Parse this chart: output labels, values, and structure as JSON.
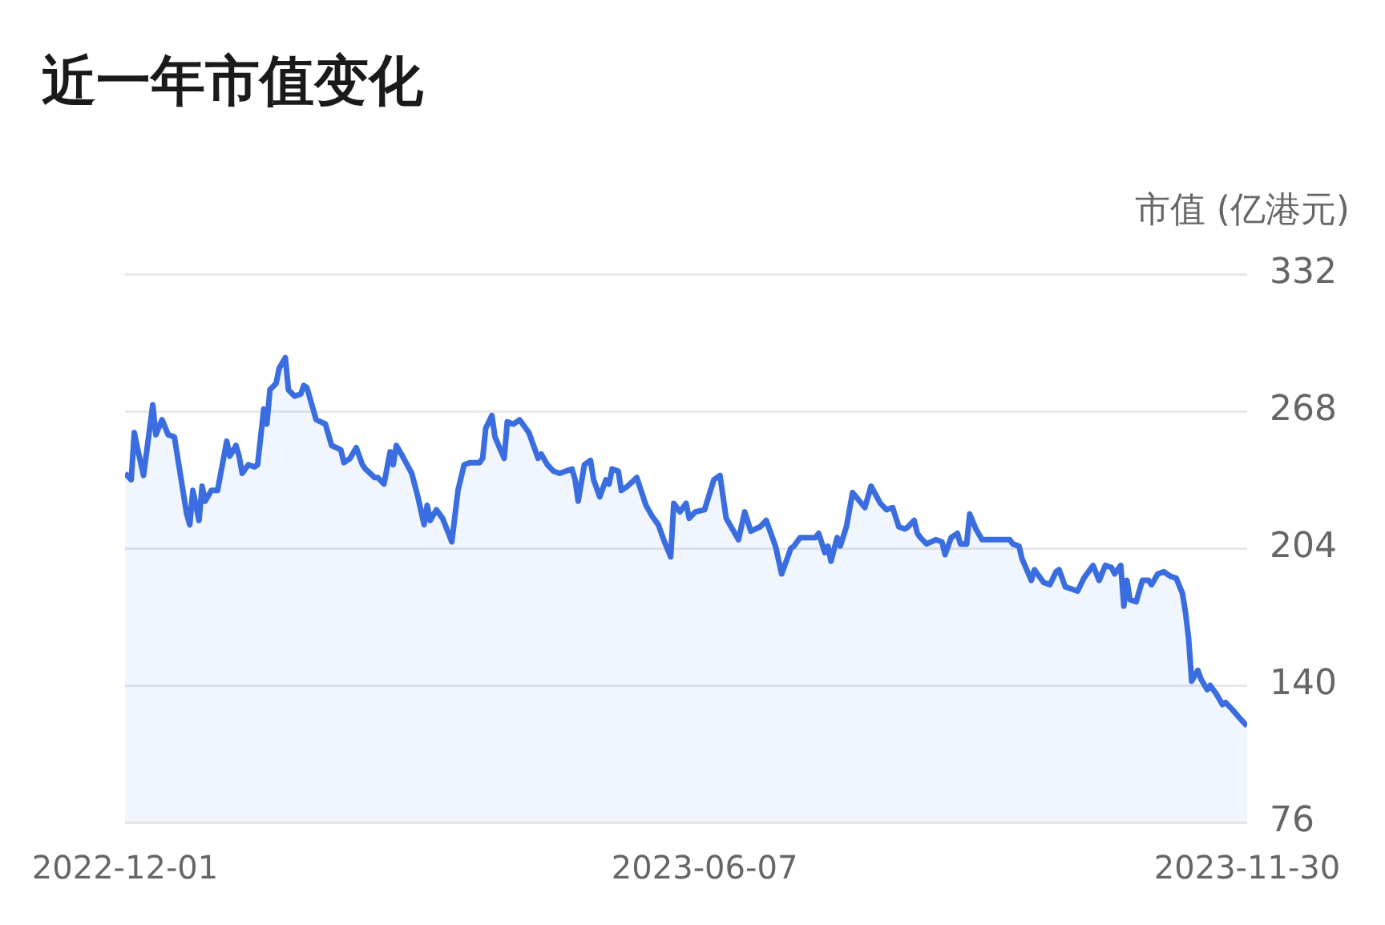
{
  "chart_data": {
    "type": "area",
    "title": "近一年市值变化",
    "ylabel": "市值 (亿港元)",
    "xlim": [
      "2022-12-01",
      "2023-11-30"
    ],
    "xticks": [
      "2022-12-01",
      "2023-06-07",
      "2023-11-30"
    ],
    "ylim": [
      76,
      332
    ],
    "yticks": [
      76,
      140,
      204,
      268,
      332
    ],
    "grid": "y",
    "legend": false,
    "marker": "none",
    "line_style": "solid",
    "x": [
      "2022-12-01",
      "2022-12-03",
      "2022-12-04",
      "2022-12-05",
      "2022-12-07",
      "2022-12-10",
      "2022-12-11",
      "2022-12-13",
      "2022-12-15",
      "2022-12-17",
      "2022-12-18",
      "2022-12-21",
      "2022-12-22",
      "2022-12-23",
      "2022-12-25",
      "2022-12-26",
      "2022-12-27",
      "2022-12-29",
      "2022-12-31",
      "2023-01-03",
      "2023-01-04",
      "2023-01-06",
      "2023-01-07",
      "2023-01-08",
      "2023-01-10",
      "2023-01-12",
      "2023-01-13",
      "2023-01-15",
      "2023-01-16",
      "2023-01-17",
      "2023-01-19",
      "2023-01-20",
      "2023-01-22",
      "2023-01-23",
      "2023-01-25",
      "2023-01-27",
      "2023-01-28",
      "2023-01-29",
      "2023-02-01",
      "2023-02-04",
      "2023-02-06",
      "2023-02-09",
      "2023-02-10",
      "2023-02-12",
      "2023-02-14",
      "2023-02-16",
      "2023-02-17",
      "2023-02-20",
      "2023-02-21",
      "2023-02-23",
      "2023-02-25",
      "2023-02-26",
      "2023-02-27",
      "2023-03-01",
      "2023-03-04",
      "2023-03-06",
      "2023-03-08",
      "2023-03-09",
      "2023-03-10",
      "2023-03-12",
      "2023-03-14",
      "2023-03-17",
      "2023-03-19",
      "2023-03-21",
      "2023-03-23",
      "2023-03-26",
      "2023-03-27",
      "2023-03-28",
      "2023-03-30",
      "2023-03-31",
      "2023-04-03",
      "2023-04-04",
      "2023-04-06",
      "2023-04-08",
      "2023-04-11",
      "2023-04-14",
      "2023-04-15",
      "2023-04-17",
      "2023-04-19",
      "2023-04-21",
      "2023-04-23",
      "2023-04-25",
      "2023-04-26",
      "2023-04-27",
      "2023-04-29",
      "2023-05-01",
      "2023-05-02",
      "2023-05-04",
      "2023-05-06",
      "2023-05-07",
      "2023-05-08",
      "2023-05-10",
      "2023-05-11",
      "2023-05-13",
      "2023-05-16",
      "2023-05-19",
      "2023-05-21",
      "2023-05-23",
      "2023-05-25",
      "2023-05-27",
      "2023-05-28",
      "2023-05-30",
      "2023-06-01",
      "2023-06-02",
      "2023-06-04",
      "2023-06-07",
      "2023-06-10",
      "2023-06-12",
      "2023-06-14",
      "2023-06-18",
      "2023-06-20",
      "2023-06-22",
      "2023-06-25",
      "2023-06-27",
      "2023-06-30",
      "2023-07-02",
      "2023-07-05",
      "2023-07-06",
      "2023-07-08",
      "2023-07-13",
      "2023-07-14",
      "2023-07-16",
      "2023-07-17",
      "2023-07-18",
      "2023-07-20",
      "2023-07-21",
      "2023-07-23",
      "2023-07-25",
      "2023-07-29",
      "2023-07-31",
      "2023-08-03",
      "2023-08-05",
      "2023-08-07",
      "2023-08-09",
      "2023-08-11",
      "2023-08-12",
      "2023-08-14",
      "2023-08-15",
      "2023-08-16",
      "2023-08-18",
      "2023-08-21",
      "2023-08-23",
      "2023-08-24",
      "2023-08-26",
      "2023-08-28",
      "2023-08-29",
      "2023-08-31",
      "2023-09-01",
      "2023-09-03",
      "2023-09-05",
      "2023-09-09",
      "2023-09-14",
      "2023-09-15",
      "2023-09-17",
      "2023-09-18",
      "2023-09-21",
      "2023-09-22",
      "2023-09-25",
      "2023-09-27",
      "2023-09-29",
      "2023-09-30",
      "2023-10-02",
      "2023-10-04",
      "2023-10-06",
      "2023-10-08",
      "2023-10-11",
      "2023-10-13",
      "2023-10-15",
      "2023-10-17",
      "2023-10-18",
      "2023-10-20",
      "2023-10-21",
      "2023-10-22",
      "2023-10-23",
      "2023-10-25",
      "2023-10-27",
      "2023-10-29",
      "2023-10-30",
      "2023-11-01",
      "2023-11-03",
      "2023-11-05",
      "2023-11-07",
      "2023-11-09",
      "2023-11-10",
      "2023-11-11",
      "2023-11-12",
      "2023-11-14",
      "2023-11-15",
      "2023-11-17",
      "2023-11-18",
      "2023-11-20",
      "2023-11-22",
      "2023-11-23",
      "2023-11-25",
      "2023-11-28",
      "2023-11-30"
    ],
    "series": [
      {
        "color": "#3a6ee0",
        "values": [
          239,
          236,
          258,
          251,
          238,
          271,
          257,
          264,
          257,
          256,
          247,
          220,
          215,
          231,
          217,
          233,
          226,
          231,
          231,
          254,
          247,
          252,
          247,
          239,
          243,
          242,
          243,
          269,
          262,
          278,
          281,
          288,
          293,
          278,
          275,
          276,
          280,
          279,
          264,
          262,
          252,
          250,
          244,
          246,
          251,
          243,
          241,
          237,
          237,
          234,
          249,
          243,
          252,
          247,
          239,
          228,
          215,
          224,
          217,
          222,
          218,
          207,
          231,
          243,
          244,
          244,
          246,
          260,
          266,
          256,
          246,
          263,
          262,
          264,
          258,
          246,
          248,
          243,
          240,
          239,
          240,
          241,
          236,
          226,
          243,
          245,
          236,
          228,
          236,
          234,
          241,
          240,
          231,
          233,
          237,
          224,
          219,
          215,
          207,
          200,
          225,
          221,
          225,
          218,
          221,
          222,
          236,
          238,
          218,
          208,
          221,
          212,
          214,
          217,
          205,
          192,
          204,
          205,
          209,
          209,
          211,
          202,
          205,
          198,
          209,
          205,
          214,
          230,
          223,
          233,
          225,
          222,
          223,
          214,
          213,
          214,
          217,
          211,
          209,
          206,
          208,
          207,
          201,
          209,
          211,
          206,
          206,
          220,
          213,
          208,
          208,
          208,
          206,
          205,
          199,
          189,
          194,
          188,
          187,
          193,
          194,
          186,
          185,
          184,
          190,
          196,
          189,
          196,
          195,
          192,
          196,
          177,
          189,
          180,
          179,
          189,
          189,
          187,
          192,
          193,
          191,
          190,
          183,
          174,
          162,
          142,
          147,
          143,
          138,
          140,
          136,
          131,
          132,
          129,
          124,
          121
        ]
      }
    ]
  }
}
